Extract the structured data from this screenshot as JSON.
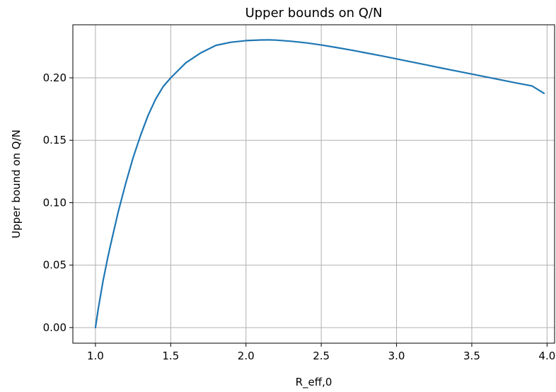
{
  "chart_data": {
    "type": "line",
    "title": "Upper bounds on Q/N",
    "xlabel": "R_eff,0",
    "ylabel": "Upper bound on Q/N",
    "xlim": [
      0.85,
      4.05
    ],
    "ylim": [
      -0.0125,
      0.2425
    ],
    "x_ticks": [
      1.0,
      1.5,
      2.0,
      2.5,
      3.0,
      3.5,
      4.0
    ],
    "x_tick_labels": [
      "1.0",
      "1.5",
      "2.0",
      "2.5",
      "3.0",
      "3.5",
      "4.0"
    ],
    "y_ticks": [
      0.0,
      0.05,
      0.1,
      0.15,
      0.2
    ],
    "y_tick_labels": [
      "0.00",
      "0.05",
      "0.10",
      "0.15",
      "0.20"
    ],
    "grid": true,
    "series": [
      {
        "color": "#1f77b4",
        "x": [
          1.0,
          1.02,
          1.05,
          1.08,
          1.1,
          1.15,
          1.2,
          1.25,
          1.3,
          1.35,
          1.4,
          1.45,
          1.5,
          1.6,
          1.7,
          1.8,
          1.9,
          2.0,
          2.1,
          2.15,
          2.2,
          2.3,
          2.4,
          2.5,
          2.6,
          2.7,
          2.8,
          2.9,
          3.0,
          3.1,
          3.2,
          3.3,
          3.4,
          3.5,
          3.6,
          3.7,
          3.8,
          3.9,
          3.98
        ],
        "y": [
          0.0,
          0.016,
          0.037,
          0.055,
          0.066,
          0.092,
          0.115,
          0.136,
          0.154,
          0.17,
          0.183,
          0.193,
          0.2,
          0.212,
          0.22,
          0.226,
          0.2285,
          0.2298,
          0.2303,
          0.2304,
          0.2302,
          0.2293,
          0.228,
          0.2263,
          0.2243,
          0.2222,
          0.2199,
          0.2176,
          0.2152,
          0.2127,
          0.2103,
          0.2078,
          0.2054,
          0.203,
          0.2006,
          0.1982,
          0.1958,
          0.1935,
          0.1876
        ]
      }
    ]
  }
}
